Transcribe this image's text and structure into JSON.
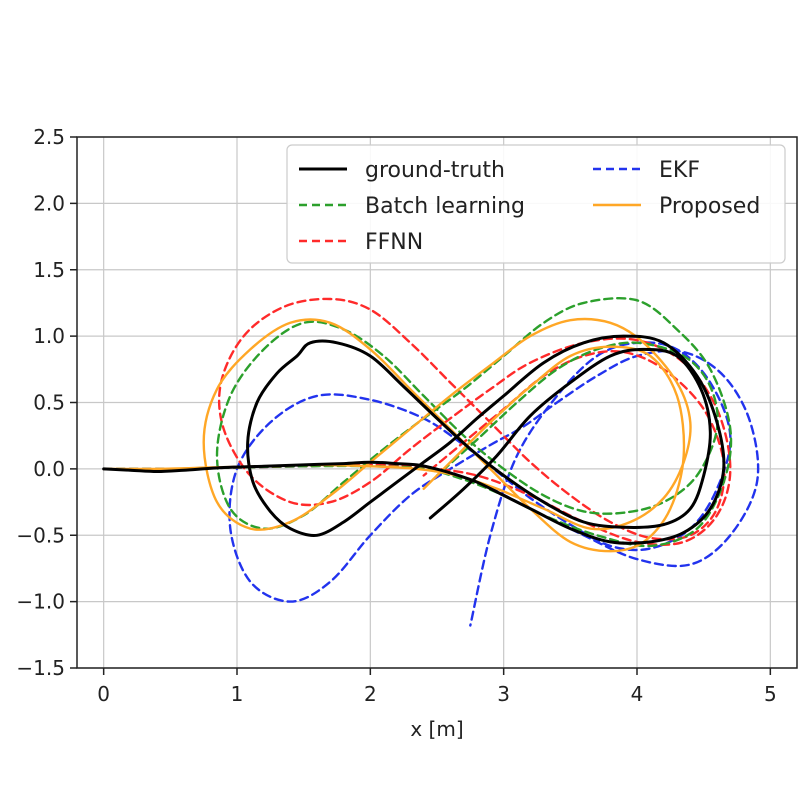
{
  "chart_data": {
    "type": "line",
    "title": "",
    "xlabel": "x [m]",
    "ylabel": "",
    "xlim": [
      -0.2,
      5.2
    ],
    "ylim": [
      -1.5,
      2.5
    ],
    "xticks": [
      0,
      1,
      2,
      3,
      4,
      5
    ],
    "yticks": [
      -1.5,
      -1.0,
      -0.5,
      0.0,
      0.5,
      1.0,
      1.5,
      2.0,
      2.5
    ],
    "xtick_labels": [
      "0",
      "1",
      "2",
      "3",
      "4",
      "5"
    ],
    "ytick_labels": [
      "−1.5",
      "−1.0",
      "−0.5",
      "0.0",
      "0.5",
      "1.0",
      "1.5",
      "2.0",
      "2.5"
    ],
    "grid": true,
    "legend_position": "top-right",
    "legend_columns": 2,
    "series": [
      {
        "name": "ground-truth",
        "color": "#000000",
        "dash": "solid",
        "x": [
          0.0,
          0.2,
          0.4,
          0.6,
          0.9,
          1.2,
          1.5,
          1.8,
          2.0,
          2.2,
          2.35,
          2.45,
          2.6,
          2.8,
          3.0,
          3.2,
          3.5,
          3.8,
          4.1,
          4.35,
          4.55,
          4.65,
          4.6,
          4.45,
          4.2,
          3.9,
          3.6,
          3.3,
          3.0,
          2.8,
          2.6,
          2.4,
          2.2,
          2.0,
          1.8,
          1.6,
          1.4,
          1.25,
          1.12,
          1.08,
          1.15,
          1.3,
          1.45,
          1.55,
          1.75,
          2.0,
          2.25,
          2.5,
          2.75,
          3.0,
          3.3,
          3.6,
          3.9,
          4.2,
          4.4,
          4.5,
          4.55,
          4.48,
          4.3,
          4.05,
          3.8,
          3.5,
          3.2,
          2.95,
          2.7,
          2.45
        ],
        "y": [
          0.0,
          -0.01,
          -0.02,
          -0.01,
          0.01,
          0.02,
          0.03,
          0.04,
          0.05,
          0.04,
          0.03,
          0.01,
          -0.03,
          -0.1,
          -0.2,
          -0.3,
          -0.45,
          -0.55,
          -0.55,
          -0.48,
          -0.3,
          0.0,
          0.35,
          0.7,
          0.95,
          1.0,
          0.95,
          0.8,
          0.55,
          0.38,
          0.2,
          0.05,
          -0.1,
          -0.25,
          -0.4,
          -0.5,
          -0.45,
          -0.32,
          -0.1,
          0.2,
          0.5,
          0.72,
          0.85,
          0.95,
          0.95,
          0.85,
          0.62,
          0.38,
          0.15,
          -0.05,
          -0.25,
          -0.4,
          -0.44,
          -0.42,
          -0.3,
          -0.05,
          0.28,
          0.6,
          0.85,
          0.9,
          0.85,
          0.65,
          0.4,
          0.1,
          -0.15,
          -0.37
        ]
      },
      {
        "name": "Batch learning",
        "color": "#2ca02c",
        "dash": "dashed",
        "x": [
          0.0,
          0.5,
          1.0,
          1.5,
          2.0,
          2.4,
          2.7,
          3.0,
          3.3,
          3.7,
          4.1,
          4.45,
          4.65,
          4.7,
          4.55,
          4.3,
          4.0,
          3.6,
          3.3,
          3.0,
          2.7,
          2.4,
          2.1,
          1.8,
          1.5,
          1.2,
          0.95,
          0.85,
          0.95,
          1.2,
          1.5,
          1.8,
          2.1,
          2.4,
          2.7,
          3.0,
          3.3,
          3.6,
          3.9,
          4.2,
          4.45,
          4.6,
          4.55,
          4.35,
          4.0,
          3.7,
          3.4,
          3.1,
          2.8,
          2.5
        ],
        "y": [
          0.0,
          0.0,
          0.01,
          0.02,
          0.02,
          0.0,
          -0.08,
          -0.2,
          -0.35,
          -0.5,
          -0.58,
          -0.45,
          -0.1,
          0.3,
          0.75,
          1.05,
          1.27,
          1.25,
          1.1,
          0.85,
          0.6,
          0.38,
          0.15,
          -0.1,
          -0.35,
          -0.45,
          -0.3,
          0.1,
          0.55,
          0.9,
          1.1,
          1.05,
          0.85,
          0.55,
          0.25,
          0.0,
          -0.2,
          -0.32,
          -0.33,
          -0.25,
          -0.05,
          0.3,
          0.62,
          0.85,
          0.95,
          0.9,
          0.75,
          0.5,
          0.22,
          -0.05
        ]
      },
      {
        "name": "FFNN",
        "color": "#ff2a2a",
        "dash": "dashed",
        "x": [
          0.0,
          0.5,
          1.0,
          1.5,
          2.0,
          2.4,
          2.8,
          3.2,
          3.6,
          4.0,
          4.35,
          4.6,
          4.7,
          4.6,
          4.35,
          4.0,
          3.6,
          3.2,
          2.9,
          2.6,
          2.3,
          2.0,
          1.7,
          1.4,
          1.1,
          0.9,
          0.88,
          1.05,
          1.35,
          1.7,
          2.0,
          2.3,
          2.6,
          2.9,
          3.2,
          3.5,
          3.8,
          4.1,
          4.4,
          4.6,
          4.65,
          4.5,
          4.2,
          3.9,
          3.6,
          3.3,
          3.0,
          2.7,
          2.4
        ],
        "y": [
          0.0,
          0.0,
          0.01,
          0.02,
          0.03,
          0.01,
          -0.05,
          -0.2,
          -0.4,
          -0.55,
          -0.55,
          -0.35,
          0.0,
          0.45,
          0.8,
          0.97,
          0.95,
          0.8,
          0.6,
          0.38,
          0.15,
          -0.1,
          -0.25,
          -0.25,
          -0.05,
          0.3,
          0.65,
          1.0,
          1.22,
          1.28,
          1.2,
          0.95,
          0.65,
          0.35,
          0.05,
          -0.2,
          -0.4,
          -0.52,
          -0.5,
          -0.3,
          0.05,
          0.45,
          0.75,
          0.88,
          0.85,
          0.7,
          0.45,
          0.2,
          -0.05
        ]
      },
      {
        "name": "EKF",
        "color": "#2233ee",
        "dash": "dashed",
        "x": [
          0.0,
          0.5,
          1.0,
          1.5,
          2.0,
          2.4,
          2.8,
          3.2,
          3.6,
          4.0,
          4.4,
          4.7,
          4.9,
          4.85,
          4.65,
          4.35,
          4.0,
          3.7,
          3.4,
          3.15,
          2.9,
          2.6,
          2.3,
          2.0,
          1.7,
          1.4,
          1.1,
          0.95,
          1.0,
          1.25,
          1.6,
          2.0,
          2.4,
          2.7,
          2.95,
          3.2,
          3.5,
          3.8,
          4.1,
          4.4,
          4.6,
          4.7,
          4.55,
          4.3,
          4.0,
          3.7,
          3.4,
          3.1,
          2.9,
          2.75
        ],
        "y": [
          0.0,
          0.0,
          0.01,
          0.02,
          0.03,
          0.02,
          -0.1,
          -0.3,
          -0.5,
          -0.68,
          -0.72,
          -0.5,
          -0.1,
          0.35,
          0.7,
          0.88,
          0.85,
          0.7,
          0.5,
          0.32,
          0.18,
          0.0,
          -0.2,
          -0.5,
          -0.85,
          -1.0,
          -0.85,
          -0.45,
          0.0,
          0.35,
          0.55,
          0.52,
          0.38,
          0.18,
          -0.02,
          -0.22,
          -0.42,
          -0.58,
          -0.6,
          -0.45,
          -0.15,
          0.25,
          0.65,
          0.9,
          0.95,
          0.85,
          0.55,
          0.1,
          -0.5,
          -1.18
        ]
      },
      {
        "name": "Proposed",
        "color": "#ffa726",
        "dash": "solid",
        "x": [
          0.0,
          0.4,
          0.8,
          1.2,
          1.6,
          2.0,
          2.35,
          2.65,
          2.95,
          3.3,
          3.65,
          3.95,
          4.2,
          4.35,
          4.4,
          4.3,
          4.05,
          3.8,
          3.5,
          3.2,
          2.9,
          2.6,
          2.3,
          2.0,
          1.7,
          1.4,
          1.1,
          0.85,
          0.75,
          0.85,
          1.1,
          1.4,
          1.7,
          2.0,
          2.3,
          2.6,
          2.9,
          3.2,
          3.5,
          3.8,
          4.05,
          4.25,
          4.35,
          4.3,
          4.1,
          3.8,
          3.5,
          3.2,
          2.9,
          2.6,
          2.4
        ],
        "y": [
          0.0,
          0.0,
          0.01,
          0.02,
          0.03,
          0.02,
          0.0,
          -0.05,
          -0.15,
          -0.3,
          -0.45,
          -0.4,
          -0.22,
          0.05,
          0.35,
          0.65,
          0.95,
          1.1,
          1.12,
          1.0,
          0.78,
          0.55,
          0.3,
          0.05,
          -0.2,
          -0.4,
          -0.45,
          -0.25,
          0.2,
          0.6,
          0.9,
          1.1,
          1.1,
          0.9,
          0.6,
          0.3,
          0.0,
          -0.3,
          -0.55,
          -0.62,
          -0.55,
          -0.3,
          0.1,
          0.55,
          0.85,
          0.92,
          0.85,
          0.62,
          0.35,
          0.05,
          -0.15
        ]
      }
    ]
  }
}
